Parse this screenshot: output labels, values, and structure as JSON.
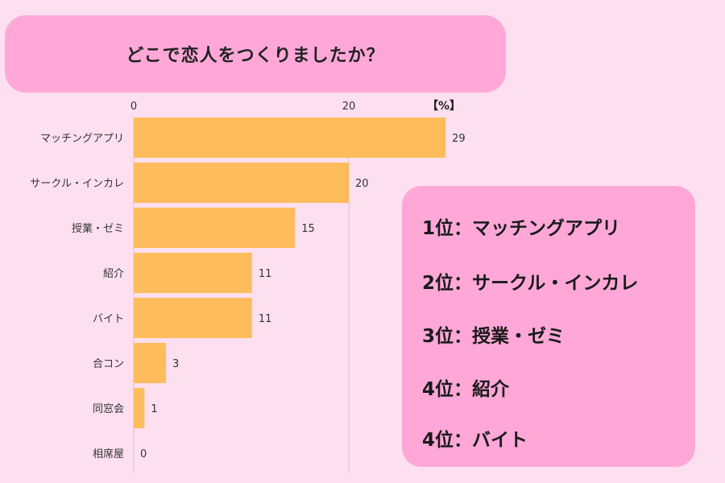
{
  "title": "どこで恋人をつくりましたか？",
  "chart_data": {
    "type": "bar",
    "orientation": "horizontal",
    "categories": [
      "マッチングアプリ",
      "サークル・インカレ",
      "授業・ゼミ",
      "紹介",
      "バイト",
      "合コン",
      "同窓会",
      "相席屋"
    ],
    "values": [
      29,
      20,
      15,
      11,
      11,
      3,
      1,
      0
    ],
    "xticks": [
      "0",
      "20"
    ],
    "unit": "【%】",
    "xlim": [
      0,
      40
    ],
    "bar_color": "#ffbc5c",
    "grid": true
  },
  "ranking": [
    "1位：マッチングアプリ",
    "2位：サークル・インカレ",
    "3位：授業・ゼミ",
    "4位：紹介",
    "4位：バイト"
  ],
  "colors": {
    "background": "#fde0ef",
    "panel": "#ffa8d8",
    "bar": "#ffbc5c"
  }
}
